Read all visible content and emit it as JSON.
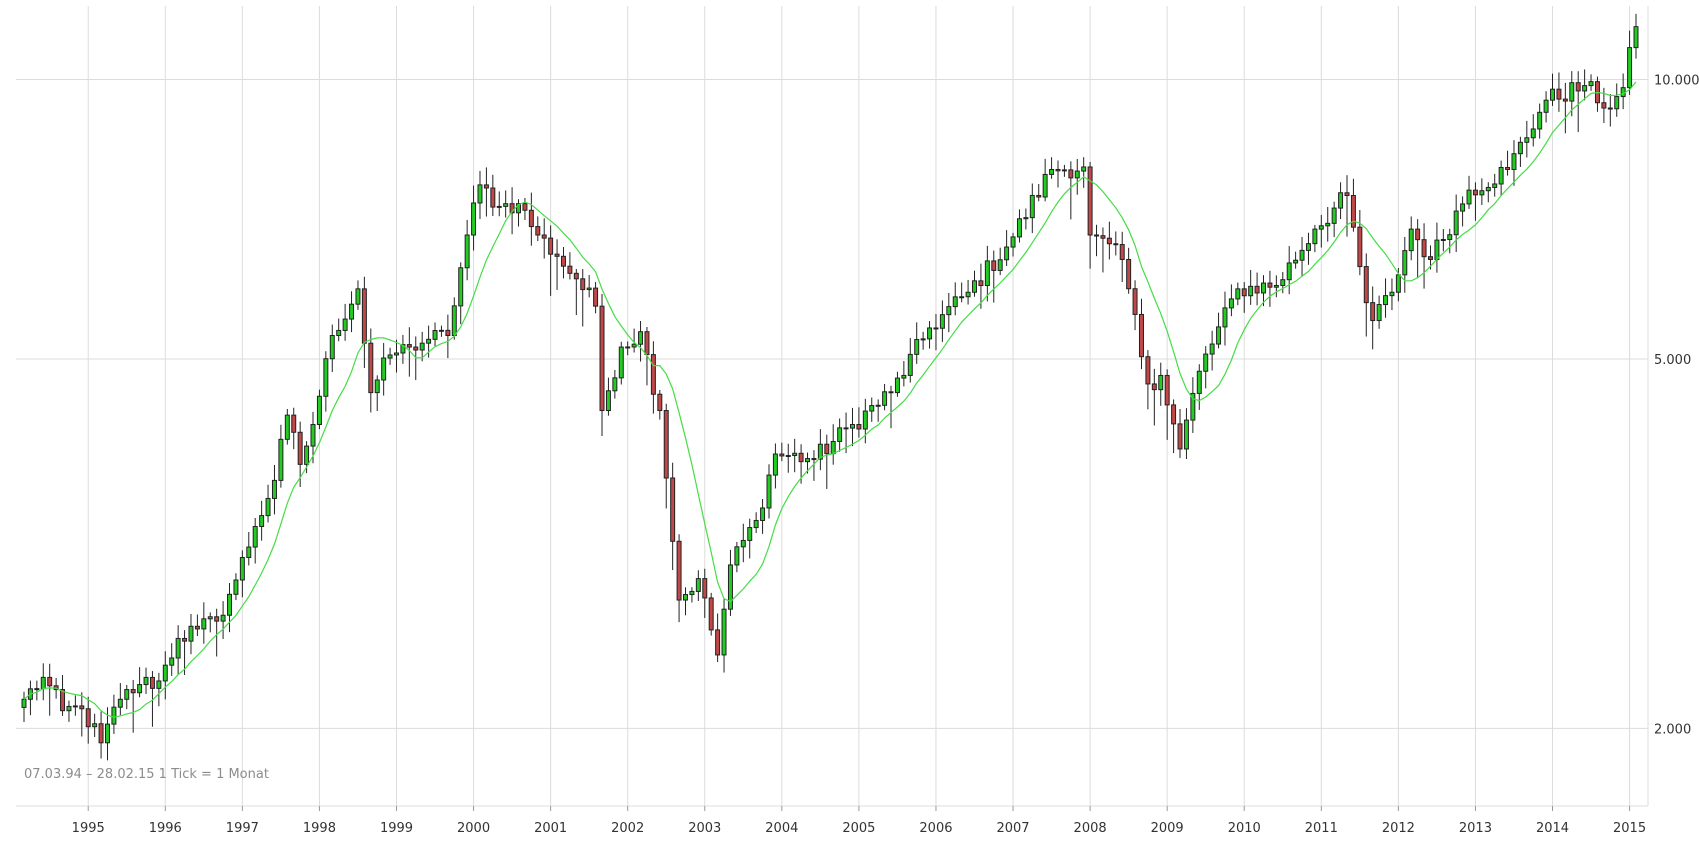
{
  "chart_data": {
    "type": "candlestick",
    "title": "",
    "xlabel": "",
    "ylabel": "",
    "x_ticks": [
      "1995",
      "1996",
      "1997",
      "1998",
      "1999",
      "2000",
      "2001",
      "2002",
      "2003",
      "2004",
      "2005",
      "2006",
      "2007",
      "2008",
      "2009",
      "2010",
      "2011",
      "2012",
      "2013",
      "2014",
      "2015"
    ],
    "y_ticks": [
      {
        "value": 2000,
        "label": "2.000"
      },
      {
        "value": 5000,
        "label": "5.000"
      },
      {
        "value": 10000,
        "label": "10.000"
      }
    ],
    "y_scale": "log",
    "ylim": [
      1650,
      12000
    ],
    "xlim": [
      "1994-03",
      "2015-02"
    ],
    "grid": true,
    "y_axis_position": "right",
    "range_note": "07.03.94 – 28.02.15   1 Tick = 1 Monat",
    "up_color": "#22cc22",
    "down_color": "#c04848",
    "ma_color": "#44dd44",
    "series": [
      {
        "name": "",
        "kind": "close",
        "frequency": "monthly",
        "start": "1994-03",
        "end": "2015-02",
        "anchors": [
          [
            "1994-03",
            2150
          ],
          [
            "1994-06",
            2270
          ],
          [
            "1994-09",
            2090
          ],
          [
            "1994-12",
            2100
          ],
          [
            "1995-03",
            1930
          ],
          [
            "1995-06",
            2150
          ],
          [
            "1995-09",
            2230
          ],
          [
            "1995-12",
            2250
          ],
          [
            "1996-03",
            2500
          ],
          [
            "1996-06",
            2560
          ],
          [
            "1996-09",
            2610
          ],
          [
            "1996-12",
            2890
          ],
          [
            "1997-03",
            3300
          ],
          [
            "1997-06",
            3700
          ],
          [
            "1997-08",
            4350
          ],
          [
            "1997-10",
            3850
          ],
          [
            "1997-12",
            4250
          ],
          [
            "1998-03",
            5300
          ],
          [
            "1998-07",
            5950
          ],
          [
            "1998-09",
            4600
          ],
          [
            "1998-12",
            5050
          ],
          [
            "1999-03",
            5150
          ],
          [
            "1999-06",
            5250
          ],
          [
            "1999-09",
            5300
          ],
          [
            "1999-12",
            6800
          ],
          [
            "2000-02",
            7700
          ],
          [
            "2000-05",
            7300
          ],
          [
            "2000-08",
            7350
          ],
          [
            "2000-11",
            6800
          ],
          [
            "2001-02",
            6450
          ],
          [
            "2001-05",
            6100
          ],
          [
            "2001-08",
            5700
          ],
          [
            "2001-09",
            4400
          ],
          [
            "2001-12",
            5150
          ],
          [
            "2002-03",
            5350
          ],
          [
            "2002-06",
            4400
          ],
          [
            "2002-09",
            2750
          ],
          [
            "2002-12",
            2900
          ],
          [
            "2003-03",
            2400
          ],
          [
            "2003-05",
            3000
          ],
          [
            "2003-09",
            3350
          ],
          [
            "2003-12",
            3950
          ],
          [
            "2004-06",
            3900
          ],
          [
            "2004-12",
            4250
          ],
          [
            "2005-06",
            4600
          ],
          [
            "2005-12",
            5400
          ],
          [
            "2006-06",
            5900
          ],
          [
            "2006-12",
            6600
          ],
          [
            "2007-07",
            8000
          ],
          [
            "2007-12",
            8050
          ],
          [
            "2008-01",
            6800
          ],
          [
            "2008-06",
            6400
          ],
          [
            "2008-10",
            4700
          ],
          [
            "2008-12",
            4800
          ],
          [
            "2009-03",
            4000
          ],
          [
            "2009-06",
            4850
          ],
          [
            "2009-12",
            5950
          ],
          [
            "2010-06",
            6000
          ],
          [
            "2010-12",
            6900
          ],
          [
            "2011-05",
            7500
          ],
          [
            "2011-08",
            5750
          ],
          [
            "2011-09",
            5500
          ],
          [
            "2011-12",
            5900
          ],
          [
            "2012-03",
            6900
          ],
          [
            "2012-06",
            6400
          ],
          [
            "2012-12",
            7600
          ],
          [
            "2013-06",
            8000
          ],
          [
            "2013-12",
            9500
          ],
          [
            "2014-06",
            9850
          ],
          [
            "2014-10",
            9300
          ],
          [
            "2014-12",
            9800
          ],
          [
            "2015-02",
            11400
          ]
        ]
      },
      {
        "name": "",
        "kind": "moving-average",
        "period_months": 9
      }
    ]
  }
}
